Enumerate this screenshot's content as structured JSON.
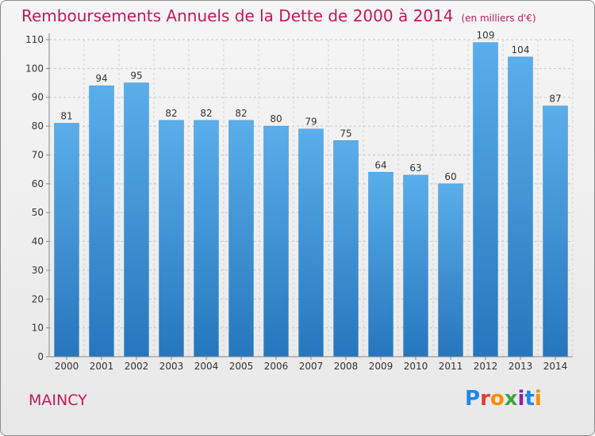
{
  "header": {
    "title": "Remboursements Annuels de la Dette de 2000 à 2014",
    "subtitle": "(en milliers d'€)"
  },
  "footer": {
    "commune": "MAINCY",
    "logo_letters": [
      "P",
      "r",
      "o",
      "x",
      "i",
      "t",
      "i"
    ],
    "logo_colors": [
      "#1e88e5",
      "#e53935",
      "#fb8c00",
      "#43a047",
      "#8e24aa",
      "#1e88e5",
      "#fb8c00"
    ]
  },
  "chart_data": {
    "type": "bar",
    "categories": [
      "2000",
      "2001",
      "2002",
      "2003",
      "2004",
      "2005",
      "2006",
      "2007",
      "2008",
      "2009",
      "2010",
      "2011",
      "2012",
      "2013",
      "2014"
    ],
    "values": [
      81,
      94,
      95,
      82,
      82,
      82,
      80,
      79,
      75,
      64,
      63,
      60,
      109,
      104,
      87
    ],
    "title": "Remboursements Annuels de la Dette de 2000 à 2014",
    "subtitle": "(en milliers d'€)",
    "xlabel": "",
    "ylabel": "",
    "ylim": [
      0,
      110
    ],
    "yticks": [
      0,
      10,
      20,
      30,
      40,
      50,
      60,
      70,
      80,
      90,
      100,
      110
    ],
    "grid": true,
    "bar_color": "#4a9fe0",
    "title_color": "#c2185b"
  }
}
